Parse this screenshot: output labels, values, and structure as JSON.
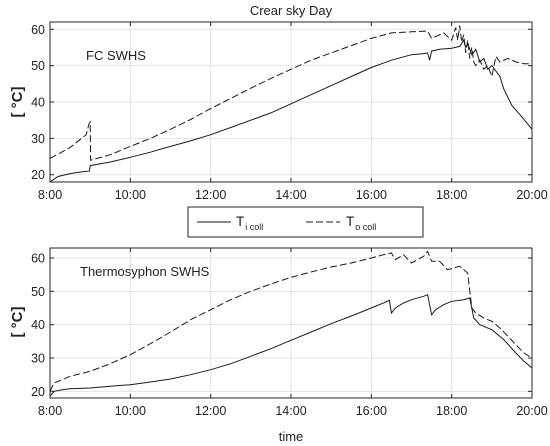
{
  "chart_data": [
    {
      "type": "line",
      "title": "Crear sky Day",
      "annotation": "FC SWHS",
      "xlabel": "",
      "ylabel": "[ °C]",
      "xlim": [
        8,
        20
      ],
      "ylim": [
        18,
        62
      ],
      "xticks": [
        8,
        10,
        12,
        14,
        16,
        18,
        20
      ],
      "xtick_labels": [
        "8:00",
        "10:00",
        "12:00",
        "14:00",
        "16:00",
        "18:00",
        "20:00"
      ],
      "yticks": [
        20,
        30,
        40,
        50,
        60
      ],
      "ytick_labels": [
        "20",
        "30",
        "40",
        "50",
        "60"
      ],
      "grid": true,
      "series": [
        {
          "name": "T i coll",
          "style": "solid",
          "x": [
            8.0,
            8.2,
            8.5,
            8.8,
            8.98,
            9.0,
            9.5,
            10.0,
            10.5,
            11.0,
            11.5,
            12.0,
            12.5,
            13.0,
            13.5,
            14.0,
            14.5,
            15.0,
            15.5,
            16.0,
            16.5,
            17.0,
            17.3,
            17.4,
            17.45,
            17.5,
            17.7,
            18.0,
            18.2,
            18.3,
            18.35,
            18.4,
            18.5,
            18.6,
            18.7,
            18.8,
            18.9,
            19.0,
            19.1,
            19.2,
            19.3,
            19.5,
            19.7,
            20.0
          ],
          "y": [
            18.0,
            19.5,
            20.3,
            20.8,
            21.0,
            22.5,
            23.5,
            24.8,
            26.2,
            27.8,
            29.3,
            31.0,
            33.0,
            35.0,
            37.0,
            39.5,
            42.0,
            44.5,
            47.0,
            49.5,
            51.5,
            53.0,
            53.3,
            53.5,
            51.5,
            54.0,
            54.5,
            54.8,
            55.3,
            57.0,
            55.0,
            56.0,
            53.0,
            54.5,
            51.0,
            52.0,
            49.0,
            50.0,
            48.5,
            47.0,
            43.5,
            39.0,
            36.5,
            32.5
          ]
        },
        {
          "name": "T o coll",
          "style": "dashed",
          "x": [
            8.0,
            8.5,
            8.9,
            8.97,
            9.0,
            9.01,
            9.5,
            10.0,
            10.5,
            11.0,
            11.5,
            12.0,
            12.5,
            13.0,
            13.5,
            14.0,
            14.5,
            15.0,
            15.5,
            16.0,
            16.5,
            17.0,
            17.4,
            17.5,
            17.8,
            18.0,
            18.1,
            18.15,
            18.2,
            18.25,
            18.3,
            18.35,
            18.4,
            18.45,
            18.5,
            18.55,
            18.6,
            18.7,
            18.8,
            18.9,
            19.0,
            19.1,
            19.2,
            19.4,
            19.6,
            19.8,
            20.0
          ],
          "y": [
            24.5,
            27.5,
            31.0,
            34.0,
            34.5,
            24.0,
            25.5,
            27.8,
            30.0,
            32.5,
            35.2,
            38.2,
            41.0,
            43.8,
            46.5,
            49.0,
            51.5,
            53.5,
            55.5,
            57.5,
            59.0,
            59.3,
            59.5,
            57.5,
            59.0,
            57.0,
            60.5,
            57.0,
            61.0,
            56.5,
            58.5,
            53.5,
            57.0,
            52.0,
            55.0,
            51.0,
            50.0,
            51.5,
            49.0,
            50.0,
            47.0,
            52.5,
            51.0,
            52.0,
            51.0,
            50.5,
            50.5
          ]
        }
      ]
    },
    {
      "type": "line",
      "title": "",
      "annotation": "Thermosyphon SWHS",
      "xlabel": "time",
      "ylabel": "[ °C]",
      "xlim": [
        8,
        20
      ],
      "ylim": [
        18,
        63
      ],
      "xticks": [
        8,
        10,
        12,
        14,
        16,
        18,
        20
      ],
      "xtick_labels": [
        "8:00",
        "10:00",
        "12:00",
        "14:00",
        "16:00",
        "18:00",
        "20:00"
      ],
      "yticks": [
        20,
        30,
        40,
        50,
        60
      ],
      "ytick_labels": [
        "20",
        "30",
        "40",
        "50",
        "60"
      ],
      "grid": true,
      "series": [
        {
          "name": "T i coll",
          "style": "solid",
          "x": [
            8.0,
            8.1,
            8.3,
            8.5,
            9.0,
            9.5,
            10.0,
            10.5,
            11.0,
            11.5,
            12.0,
            12.5,
            13.0,
            13.5,
            14.0,
            14.5,
            15.0,
            15.5,
            16.0,
            16.3,
            16.45,
            16.5,
            16.6,
            16.8,
            17.0,
            17.3,
            17.4,
            17.5,
            17.6,
            17.8,
            18.0,
            18.3,
            18.45,
            18.55,
            18.7,
            19.0,
            19.3,
            19.6,
            19.8,
            20.0
          ],
          "y": [
            18.5,
            20.0,
            20.5,
            20.8,
            21.0,
            21.5,
            22.0,
            22.8,
            23.7,
            25.0,
            26.5,
            28.3,
            30.5,
            32.8,
            35.3,
            37.8,
            40.3,
            42.6,
            45.0,
            46.5,
            47.3,
            43.5,
            45.0,
            46.5,
            47.5,
            48.5,
            49.0,
            43.0,
            44.5,
            46.0,
            47.0,
            47.5,
            48.0,
            42.0,
            40.0,
            38.5,
            35.5,
            31.5,
            29.0,
            27.0
          ]
        },
        {
          "name": "T o coll",
          "style": "dashed",
          "x": [
            8.0,
            8.1,
            8.3,
            8.5,
            9.0,
            9.5,
            10.0,
            10.5,
            11.0,
            11.5,
            12.0,
            12.5,
            13.0,
            13.5,
            14.0,
            14.5,
            15.0,
            15.5,
            16.0,
            16.3,
            16.5,
            16.6,
            16.8,
            17.0,
            17.3,
            17.4,
            17.5,
            17.7,
            17.9,
            18.2,
            18.4,
            18.5,
            18.6,
            18.8,
            19.0,
            19.2,
            19.4,
            19.6,
            19.8,
            20.0
          ],
          "y": [
            20.0,
            22.5,
            23.5,
            24.5,
            26.0,
            28.3,
            31.0,
            34.3,
            37.8,
            41.5,
            44.5,
            47.5,
            50.0,
            52.2,
            54.2,
            55.8,
            57.3,
            58.5,
            60.0,
            61.0,
            61.5,
            59.5,
            61.0,
            58.5,
            60.5,
            62.0,
            59.0,
            59.0,
            56.5,
            57.5,
            55.5,
            45.0,
            43.5,
            42.0,
            41.0,
            39.0,
            36.5,
            34.0,
            31.5,
            30.0
          ]
        }
      ]
    }
  ],
  "legend": {
    "entries": [
      {
        "main": "T",
        "sub": "i coll",
        "style": "solid"
      },
      {
        "main": "T",
        "sub": "o coll",
        "style": "dashed"
      }
    ]
  }
}
